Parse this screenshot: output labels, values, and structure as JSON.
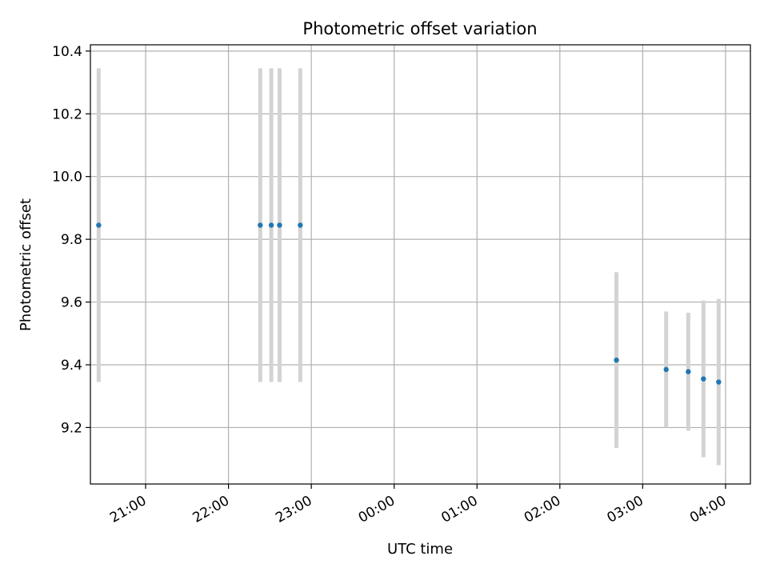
{
  "chart_data": {
    "type": "scatter",
    "title": "Photometric offset variation",
    "xlabel": "UTC time",
    "ylabel": "Photometric offset",
    "x_type": "time",
    "x_tick_labels": [
      "21:00",
      "22:00",
      "23:00",
      "00:00",
      "01:00",
      "02:00",
      "03:00",
      "04:00"
    ],
    "x_ticks_hours": [
      21,
      22,
      23,
      24,
      25,
      26,
      27,
      28
    ],
    "y_ticks": [
      9.2,
      9.4,
      9.6,
      9.8,
      10.0,
      10.2,
      10.4
    ],
    "y_tick_labels": [
      "9.2",
      "9.4",
      "9.6",
      "9.8",
      "10.0",
      "10.2",
      "10.4"
    ],
    "xlim": [
      "20:20",
      "04:18"
    ],
    "ylim": [
      9.02,
      10.42
    ],
    "grid": true,
    "series": [
      {
        "points": [
          {
            "t": "20:26",
            "y": 9.845,
            "lo": 9.345,
            "hi": 10.345
          },
          {
            "t": "22:23",
            "y": 9.845,
            "lo": 9.345,
            "hi": 10.345
          },
          {
            "t": "22:31",
            "y": 9.845,
            "lo": 9.345,
            "hi": 10.345
          },
          {
            "t": "22:37",
            "y": 9.845,
            "lo": 9.345,
            "hi": 10.345
          },
          {
            "t": "22:52",
            "y": 9.845,
            "lo": 9.345,
            "hi": 10.345
          },
          {
            "t": "02:41",
            "y": 9.415,
            "lo": 9.135,
            "hi": 9.695
          },
          {
            "t": "03:17",
            "y": 9.385,
            "lo": 9.2,
            "hi": 9.57
          },
          {
            "t": "03:33",
            "y": 9.378,
            "lo": 9.19,
            "hi": 9.566
          },
          {
            "t": "03:44",
            "y": 9.355,
            "lo": 9.105,
            "hi": 9.605
          },
          {
            "t": "03:55",
            "y": 9.345,
            "lo": 9.08,
            "hi": 9.61
          }
        ]
      }
    ],
    "colors": {
      "marker": "#1f77b4",
      "errorbar": "#d3d3d3",
      "grid": "#b0b0b0",
      "axis": "#000000"
    }
  }
}
